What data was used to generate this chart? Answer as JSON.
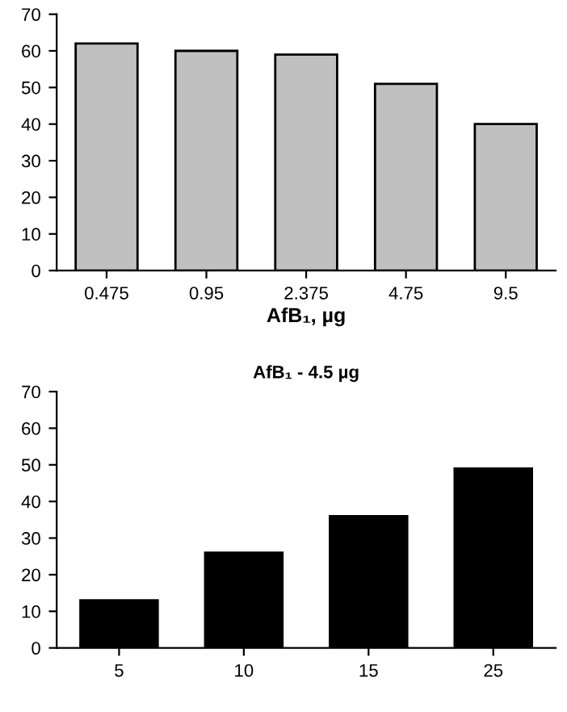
{
  "chart_data": [
    {
      "type": "bar",
      "categories": [
        "0.475",
        "0.95",
        "2.375",
        "4.75",
        "9.5"
      ],
      "values": [
        62,
        60,
        59,
        51,
        40
      ],
      "color": "#c0c0c0",
      "xlabel": "AfB₁, µg",
      "ylim": [
        0,
        70
      ],
      "yticks": [
        0,
        10,
        20,
        30,
        40,
        50,
        60,
        70
      ],
      "grid": false
    },
    {
      "type": "bar",
      "title": "AfB₁ - 4.5 µg",
      "categories": [
        "5",
        "10",
        "15",
        "25"
      ],
      "values": [
        13,
        26,
        36,
        49
      ],
      "color": "#000000",
      "ylim": [
        0,
        70
      ],
      "yticks": [
        0,
        10,
        20,
        30,
        40,
        50,
        60,
        70
      ],
      "grid": false
    }
  ]
}
